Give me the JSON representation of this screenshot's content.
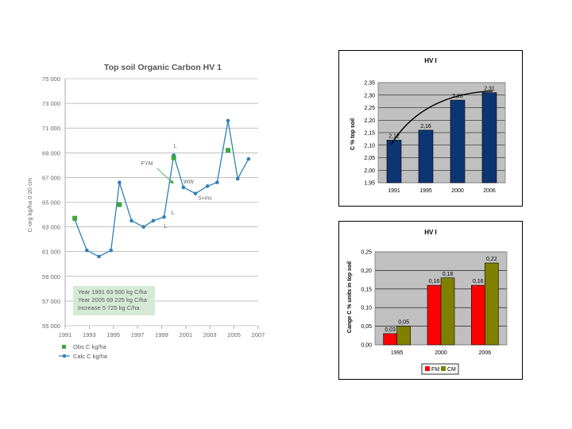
{
  "chart_data": [
    {
      "type": "line",
      "title": "Top soil Organic Carbon HV 1",
      "ylabel": "C-org kg/ha 0-20 cm",
      "xlabel": "",
      "xlim": [
        1991,
        2007
      ],
      "ylim": [
        55000,
        75000
      ],
      "x_ticks": [
        "1991",
        "1993",
        "1995",
        "1997",
        "1999",
        "2001",
        "2003",
        "2005",
        "2007"
      ],
      "y_ticks": [
        "55 000",
        "57 000",
        "59 000",
        "61 000",
        "63 000",
        "65 000",
        "67 000",
        "69 000",
        "71 000",
        "73 000",
        "75 000"
      ],
      "grid": true,
      "legend_position": "bottom-left",
      "series": [
        {
          "name": "Obs C kg/ha",
          "marker": "square",
          "color": "#3aaa3a",
          "points": [
            [
              1991.8,
              63700
            ],
            [
              1995.5,
              64800
            ],
            [
              2000,
              68600
            ],
            [
              2004.5,
              69200
            ]
          ]
        },
        {
          "name": "Calc C kg/ha",
          "marker": "circle",
          "color": "#2e7fb8",
          "points": [
            [
              1991.8,
              63600
            ],
            [
              1992.8,
              61100
            ],
            [
              1993.8,
              60600
            ],
            [
              1994.8,
              61100
            ],
            [
              1995.5,
              66600
            ],
            [
              1996.5,
              63500
            ],
            [
              1997.5,
              63000
            ],
            [
              1998.3,
              63500
            ],
            [
              1999.2,
              63800
            ],
            [
              2000,
              68800
            ],
            [
              2000.8,
              66200
            ],
            [
              2001.8,
              65700
            ],
            [
              2002.8,
              66300
            ],
            [
              2003.6,
              66600
            ],
            [
              2004.5,
              71600
            ],
            [
              2005.3,
              66900
            ],
            [
              2006.2,
              68500
            ]
          ]
        }
      ],
      "annotations": {
        "fym": {
          "label": "FYM",
          "x": 1997.3,
          "y": 68000
        },
        "l1": {
          "label": "L",
          "x": 2000,
          "y": 69400
        },
        "ww": {
          "label": "WW",
          "x": 2000.8,
          "y": 66500
        },
        "sins": {
          "label": "S+ins",
          "x": 2002,
          "y": 65200
        },
        "l2": {
          "label": "L",
          "x": 1999.8,
          "y": 64000
        },
        "l3": {
          "label": "L",
          "x": 1999.2,
          "y": 62900
        }
      },
      "note_lines": [
        "Year 1991 63 500 kg C/ha",
        "Year 2005 69 225 kg C/ha",
        "Increase 5 725 kg C/ha"
      ]
    },
    {
      "type": "bar",
      "title": "HV I",
      "ylabel": "C % top soil",
      "xlabel": "",
      "categories": [
        "1991",
        "1995",
        "2000",
        "2006"
      ],
      "values": [
        2.12,
        2.16,
        2.28,
        2.31
      ],
      "value_labels": [
        "2,12",
        "2,16",
        "2,28",
        "2,31"
      ],
      "ylim": [
        1.95,
        2.35
      ],
      "y_ticks": [
        "1,95",
        "2,00",
        "2,05",
        "2,10",
        "2,15",
        "2,20",
        "2,25",
        "2,30",
        "2,35"
      ],
      "grid": true,
      "trendline": true,
      "bar_color": "#0d3572"
    },
    {
      "type": "bar",
      "title": "HV I",
      "ylabel": "Cange C % units in top soil",
      "xlabel": "",
      "categories": [
        "1995",
        "2000",
        "2006"
      ],
      "ylim": [
        0,
        0.25
      ],
      "y_ticks": [
        "0,00",
        "0,05",
        "0,10",
        "0,15",
        "0,20",
        "0,25"
      ],
      "grid": true,
      "legend_position": "bottom",
      "series": [
        {
          "name": "FM",
          "color": "#ff0000",
          "values": [
            0.03,
            0.16,
            0.16
          ],
          "value_labels": [
            "0,03",
            "0,16",
            "0,16"
          ]
        },
        {
          "name": "CM",
          "color": "#808000",
          "values": [
            0.05,
            0.18,
            0.22
          ],
          "value_labels": [
            "0,05",
            "0,18",
            "0,22"
          ]
        }
      ]
    }
  ]
}
